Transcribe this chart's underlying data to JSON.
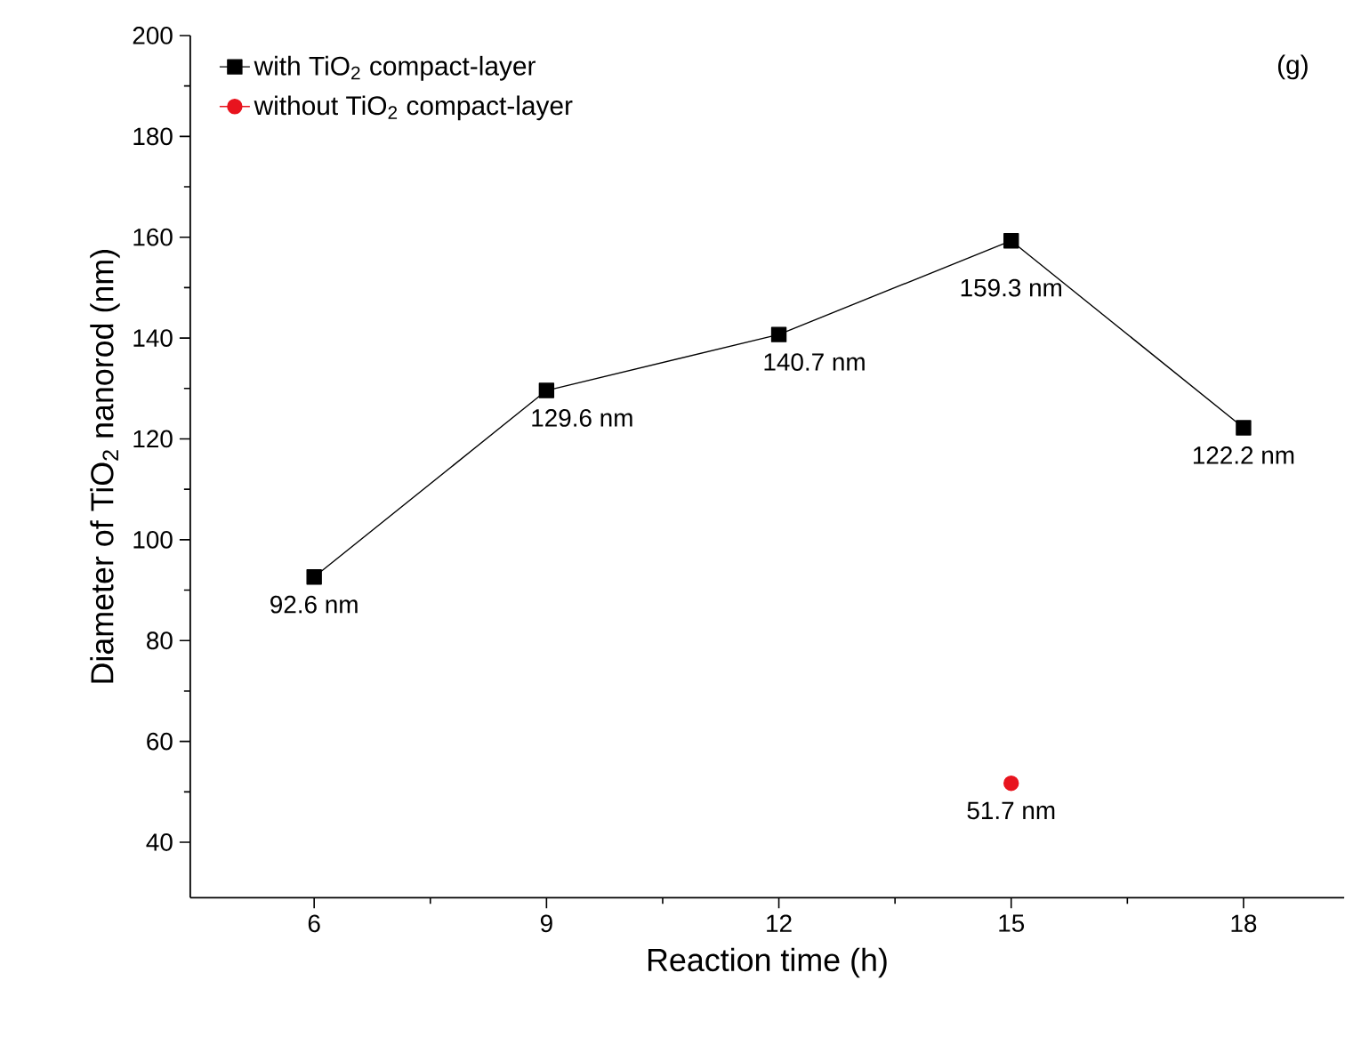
{
  "chart_data": {
    "type": "line",
    "xlabel": "Reaction time (h)",
    "ylabel": "Diameter of TiO$_{2}$ nanorod (nm)",
    "annotations": [
      "(g)"
    ],
    "xlim": [
      4.4,
      19.3
    ],
    "xticks": [
      6,
      9,
      12,
      15,
      18
    ],
    "ylim": [
      29,
      200
    ],
    "yticks": [
      40,
      60,
      80,
      100,
      120,
      140,
      160,
      180,
      200
    ],
    "legend": "top left",
    "grid": false,
    "series": [
      {
        "name": "with TiO$_{2}$ compact-layer",
        "color": "#000000",
        "marker": "square",
        "x": [
          6,
          9,
          12,
          15,
          18
        ],
        "values": [
          92.6,
          129.6,
          140.7,
          159.3,
          122.2
        ],
        "value_labels": [
          "92.6 nm",
          "129.6 nm",
          "140.7 nm",
          "159.3 nm",
          "122.2 nm"
        ]
      },
      {
        "name": "without TiO$_{2}$ compact-layer",
        "color": "#e8141e",
        "marker": "circle",
        "x": [
          15
        ],
        "values": [
          51.7
        ],
        "value_labels": [
          "51.7 nm"
        ]
      }
    ]
  }
}
